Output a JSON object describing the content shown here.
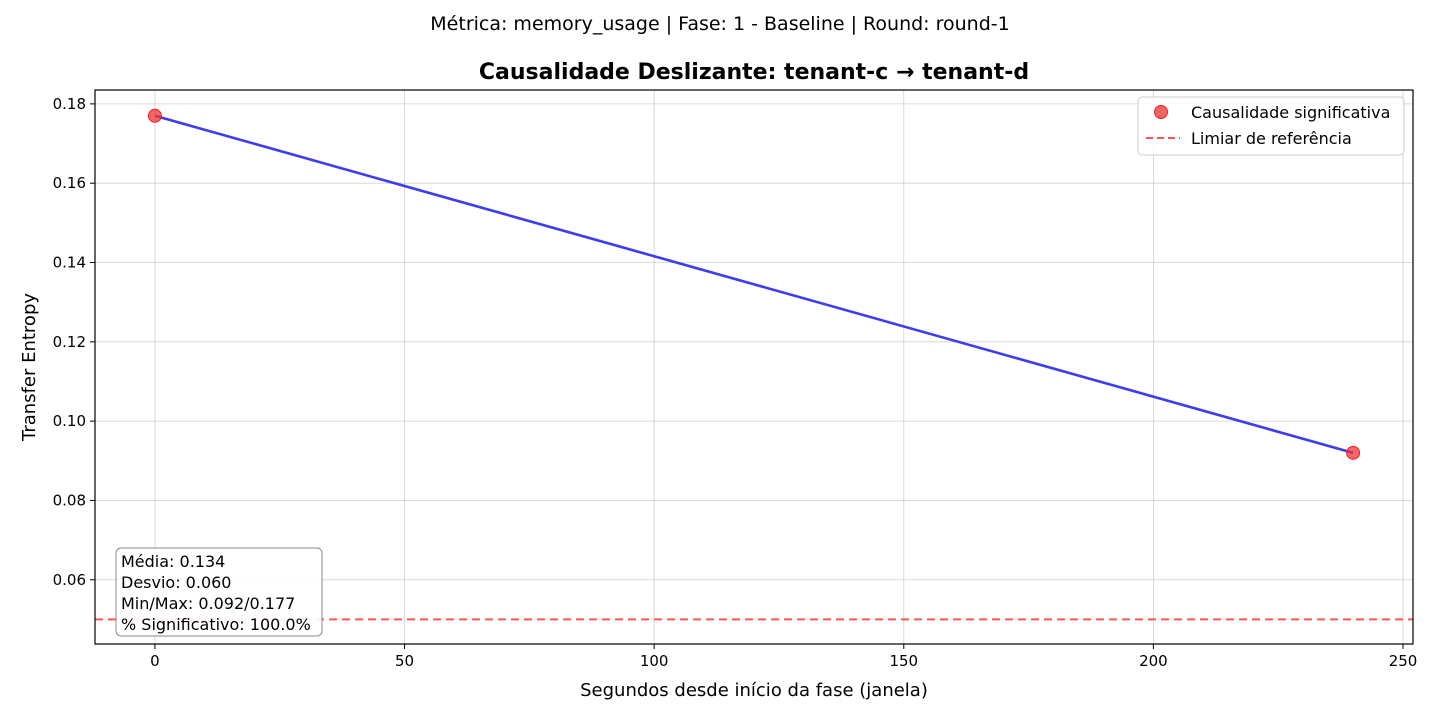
{
  "suptitle": "Métrica: memory_usage | Fase: 1 - Baseline | Round: round-1",
  "chart_data": {
    "type": "line",
    "title": "Causalidade Deslizante: tenant-c → tenant-d",
    "xlabel": "Segundos desde início da fase (janela)",
    "ylabel": "Transfer Entropy",
    "xlim": [
      -12,
      252
    ],
    "ylim": [
      0.0438,
      0.1835
    ],
    "x_ticks": [
      0,
      50,
      100,
      150,
      200,
      250
    ],
    "y_ticks": [
      0.06,
      0.08,
      0.1,
      0.12,
      0.14,
      0.16,
      0.18
    ],
    "x_tick_labels": [
      "0",
      "50",
      "100",
      "150",
      "200",
      "250"
    ],
    "y_tick_labels": [
      "0.06",
      "0.08",
      "0.10",
      "0.12",
      "0.14",
      "0.16",
      "0.18"
    ],
    "grid": true,
    "series": [
      {
        "x": [
          0,
          240
        ],
        "values": [
          0.177,
          0.092
        ],
        "color": "#3333ee"
      }
    ],
    "significant_points": {
      "name": "Causalidade significativa",
      "x": [
        0,
        240
      ],
      "values": [
        0.177,
        0.092
      ],
      "color": "#ee3333"
    },
    "threshold": {
      "name": "Limiar de referência",
      "value": 0.05,
      "color": "#ff5555"
    },
    "legend": {
      "position": "top-right",
      "entries": [
        "Causalidade significativa",
        "Limiar de referência"
      ]
    },
    "stats_box": {
      "lines": [
        "Média: 0.134",
        "Desvio: 0.060",
        "Min/Max: 0.092/0.177",
        "% Significativo: 100.0%"
      ]
    }
  }
}
